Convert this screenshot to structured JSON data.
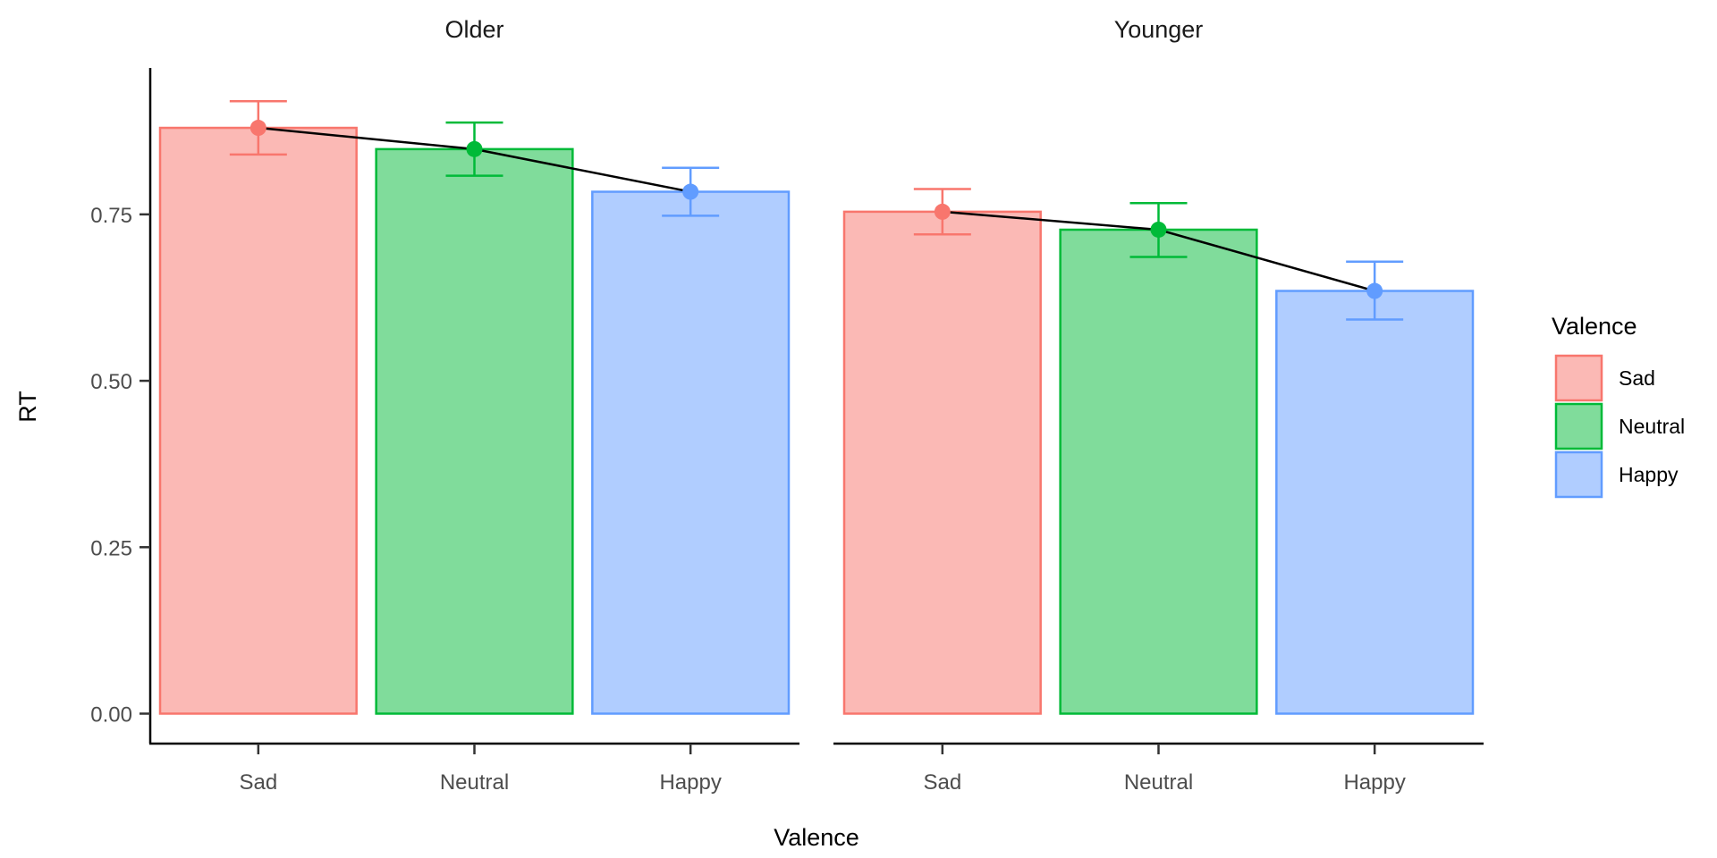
{
  "chart_data": {
    "type": "bar",
    "ylabel": "RT",
    "xlabel": "Valence",
    "ylim": [
      -0.045,
      0.97
    ],
    "yticks": [
      0.0,
      0.25,
      0.5,
      0.75
    ],
    "ytick_labels": [
      "0.00",
      "0.25",
      "0.50",
      "0.75"
    ],
    "categories": [
      "Sad",
      "Neutral",
      "Happy"
    ],
    "panels": [
      {
        "title": "Older",
        "values": [
          0.88,
          0.848,
          0.784
        ],
        "err_low": [
          0.84,
          0.808,
          0.748
        ],
        "err_high": [
          0.92,
          0.888,
          0.82
        ]
      },
      {
        "title": "Younger",
        "values": [
          0.754,
          0.727,
          0.635
        ],
        "err_low": [
          0.72,
          0.686,
          0.592
        ],
        "err_high": [
          0.788,
          0.767,
          0.679
        ]
      }
    ],
    "legend": {
      "title": "Valence",
      "position": "right",
      "entries": [
        "Sad",
        "Neutral",
        "Happy"
      ]
    },
    "colors": {
      "Sad": {
        "line": "#F8766D",
        "fill": "#FBB9B5"
      },
      "Neutral": {
        "line": "#00BA38",
        "fill": "#80DC9B"
      },
      "Happy": {
        "line": "#619CFF",
        "fill": "#B0CDFF"
      }
    },
    "grid": false
  }
}
